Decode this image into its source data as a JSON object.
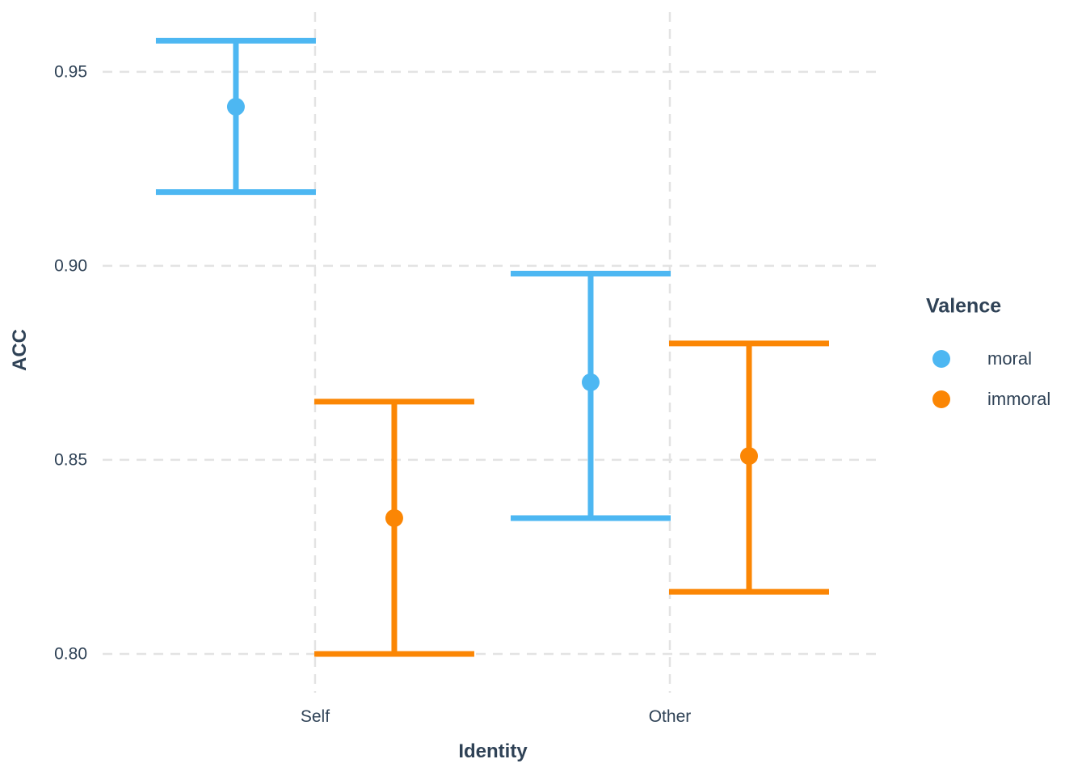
{
  "chart_data": {
    "type": "pointrange",
    "title": "",
    "xlabel": "Identity",
    "ylabel": "ACC",
    "categories": [
      "Self",
      "Other"
    ],
    "ylim": [
      0.79,
      0.9685
    ],
    "grid": "dashed-both-axes",
    "y_axis": {
      "title": "ACC",
      "ticks": [
        {
          "label": "0.95",
          "value": 0.95
        },
        {
          "label": "0.90",
          "value": 0.9
        },
        {
          "label": "0.85",
          "value": 0.85
        },
        {
          "label": "0.80",
          "value": 0.8
        }
      ]
    },
    "x_axis": {
      "title": "Identity",
      "ticks": [
        {
          "label": "Self"
        },
        {
          "label": "Other"
        }
      ]
    },
    "legend": {
      "title": "Valence",
      "position": "right",
      "entries": [
        {
          "label": "moral",
          "color": "#4DB7F2"
        },
        {
          "label": "immoral",
          "color": "#FB8604"
        }
      ]
    },
    "series": [
      {
        "name": "moral",
        "color": "#4DB7F2",
        "points": [
          {
            "x": "Self",
            "mean": 0.941,
            "lower": 0.919,
            "upper": 0.958
          },
          {
            "x": "Other",
            "mean": 0.87,
            "lower": 0.835,
            "upper": 0.898
          }
        ]
      },
      {
        "name": "immoral",
        "color": "#FB8604",
        "points": [
          {
            "x": "Self",
            "mean": 0.835,
            "lower": 0.8,
            "upper": 0.865
          },
          {
            "x": "Other",
            "mean": 0.851,
            "lower": 0.816,
            "upper": 0.88
          }
        ]
      }
    ],
    "style": {
      "gridline_color": "#e3e3e3",
      "text_color": "#2f4256",
      "background": "#ffffff"
    }
  }
}
